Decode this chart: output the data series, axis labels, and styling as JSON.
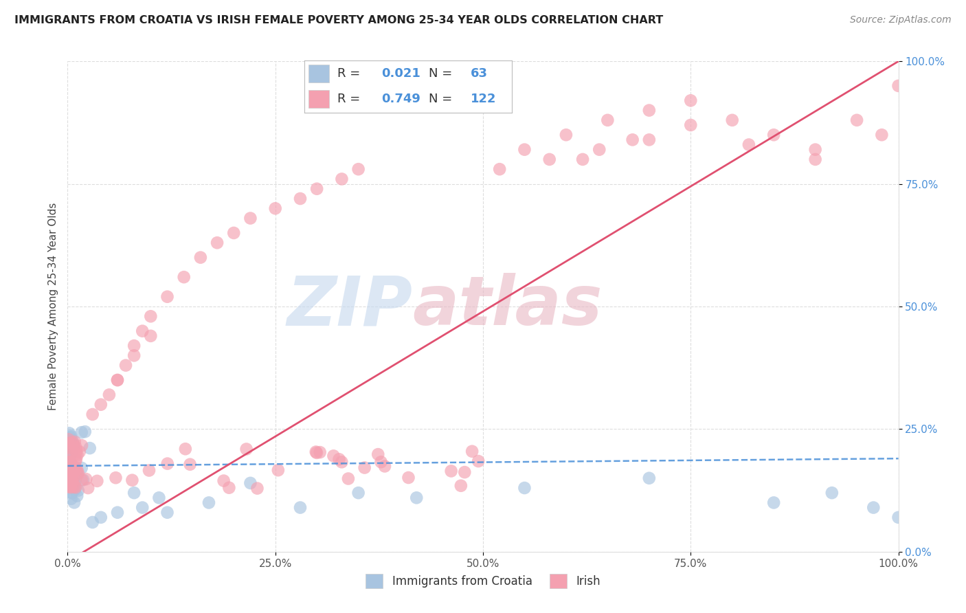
{
  "title": "IMMIGRANTS FROM CROATIA VS IRISH FEMALE POVERTY AMONG 25-34 YEAR OLDS CORRELATION CHART",
  "source": "Source: ZipAtlas.com",
  "ylabel": "Female Poverty Among 25-34 Year Olds",
  "xlabel_blue": "Immigrants from Croatia",
  "xlabel_pink": "Irish",
  "xlim": [
    0.0,
    1.0
  ],
  "ylim": [
    0.0,
    1.0
  ],
  "xtick_vals": [
    0.0,
    0.25,
    0.5,
    0.75,
    1.0
  ],
  "xtick_labels": [
    "0.0%",
    "25.0%",
    "50.0%",
    "75.0%",
    "100.0%"
  ],
  "ytick_vals": [
    0.0,
    0.25,
    0.5,
    0.75,
    1.0
  ],
  "ytick_labels": [
    "0.0%",
    "25.0%",
    "50.0%",
    "75.0%",
    "100.0%"
  ],
  "blue_R": 0.021,
  "blue_N": 63,
  "pink_R": 0.749,
  "pink_N": 122,
  "blue_color": "#a8c4e0",
  "pink_color": "#f4a0b0",
  "blue_line_color": "#4a90d9",
  "pink_line_color": "#e05070",
  "accent_color": "#4a90d9",
  "grid_color": "#dddddd",
  "spine_color": "#cccccc",
  "title_color": "#222222",
  "source_color": "#888888",
  "label_color": "#444444",
  "watermark_zip_color": "#c5d8ee",
  "watermark_atlas_color": "#e8b8c4"
}
